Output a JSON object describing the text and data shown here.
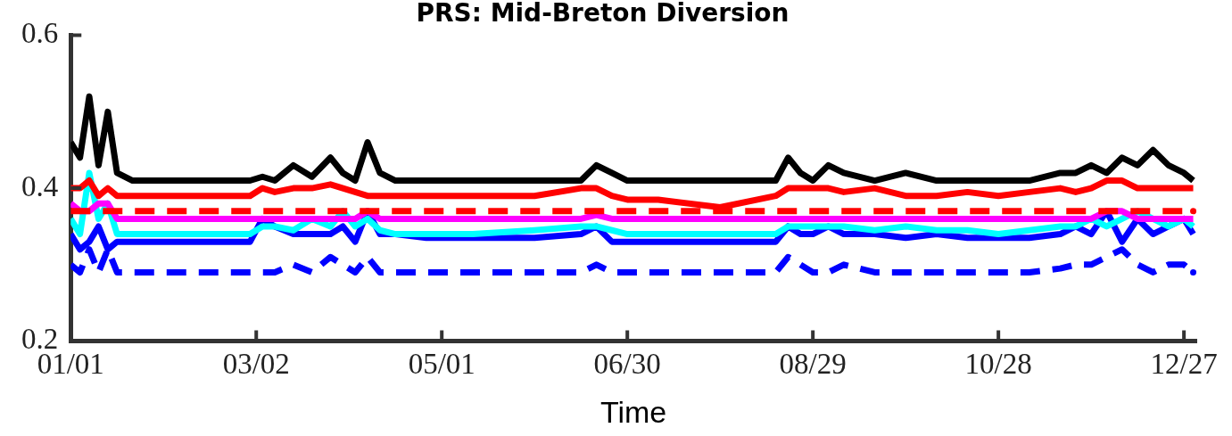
{
  "chart_data": {
    "type": "line",
    "title": "PRS: Mid-Breton Diversion",
    "xlabel": "Time",
    "x": [
      "--01-01",
      "--01-04",
      "--01-07",
      "--01-10",
      "--01-13",
      "--01-16",
      "--01-21",
      "--01-31",
      "--02-15",
      "--02-28",
      "--03-04",
      "--03-08",
      "--03-14",
      "--03-20",
      "--03-26",
      "--03-30",
      "--04-03",
      "--04-07",
      "--04-11",
      "--04-16",
      "--04-26",
      "--05-11",
      "--05-31",
      "--06-15",
      "--06-20",
      "--06-25",
      "--06-30",
      "--07-10",
      "--07-30",
      "--08-17",
      "--08-21",
      "--08-25",
      "--08-29",
      "--09-03",
      "--09-08",
      "--09-18",
      "--09-28",
      "--10-08",
      "--10-18",
      "--10-28",
      "--11-07",
      "--11-17",
      "--11-22",
      "--11-27",
      "--12-02",
      "--12-07",
      "--12-12",
      "--12-17",
      "--12-22",
      "--12-27",
      "--12-30"
    ],
    "series": [
      {
        "color": "#000000",
        "values": [
          0.46,
          0.44,
          0.52,
          0.43,
          0.5,
          0.42,
          0.41,
          0.41,
          0.41,
          0.41,
          0.415,
          0.41,
          0.43,
          0.415,
          0.44,
          0.42,
          0.41,
          0.46,
          0.42,
          0.41,
          0.41,
          0.41,
          0.41,
          0.41,
          0.43,
          0.42,
          0.41,
          0.41,
          0.41,
          0.41,
          0.44,
          0.42,
          0.41,
          0.43,
          0.42,
          0.41,
          0.42,
          0.41,
          0.41,
          0.41,
          0.41,
          0.42,
          0.42,
          0.43,
          0.42,
          0.44,
          0.43,
          0.45,
          0.43,
          0.42,
          0.41
        ]
      },
      {
        "color": "#ff0000",
        "values": [
          0.4,
          0.4,
          0.41,
          0.39,
          0.4,
          0.39,
          0.39,
          0.39,
          0.39,
          0.39,
          0.4,
          0.395,
          0.4,
          0.4,
          0.405,
          0.4,
          0.395,
          0.39,
          0.39,
          0.39,
          0.39,
          0.39,
          0.39,
          0.4,
          0.4,
          0.39,
          0.385,
          0.385,
          0.375,
          0.39,
          0.4,
          0.4,
          0.4,
          0.4,
          0.395,
          0.4,
          0.39,
          0.39,
          0.395,
          0.39,
          0.395,
          0.4,
          0.395,
          0.4,
          0.41,
          0.41,
          0.4,
          0.4,
          0.4,
          0.4,
          0.4
        ]
      },
      {
        "color": "#ff0000",
        "line_style": "dashed",
        "values": [
          0.37,
          0.37,
          0.37,
          0.37,
          0.37,
          0.37,
          0.37,
          0.37,
          0.37,
          0.37,
          0.37,
          0.37,
          0.37,
          0.37,
          0.37,
          0.37,
          0.37,
          0.37,
          0.37,
          0.37,
          0.37,
          0.37,
          0.37,
          0.37,
          0.37,
          0.37,
          0.37,
          0.37,
          0.37,
          0.37,
          0.37,
          0.37,
          0.37,
          0.37,
          0.37,
          0.37,
          0.37,
          0.37,
          0.37,
          0.37,
          0.37,
          0.37,
          0.37,
          0.37,
          0.37,
          0.37,
          0.37,
          0.37,
          0.37,
          0.37,
          0.37
        ]
      },
      {
        "color": "#ff00ff",
        "values": [
          0.38,
          0.37,
          0.37,
          0.38,
          0.38,
          0.36,
          0.36,
          0.36,
          0.36,
          0.36,
          0.36,
          0.36,
          0.36,
          0.36,
          0.36,
          0.36,
          0.36,
          0.37,
          0.36,
          0.36,
          0.36,
          0.36,
          0.36,
          0.36,
          0.365,
          0.36,
          0.36,
          0.36,
          0.36,
          0.36,
          0.36,
          0.36,
          0.36,
          0.36,
          0.36,
          0.36,
          0.36,
          0.36,
          0.36,
          0.36,
          0.36,
          0.36,
          0.36,
          0.36,
          0.37,
          0.37,
          0.36,
          0.36,
          0.36,
          0.36,
          0.36
        ]
      },
      {
        "color": "#00ffff",
        "values": [
          0.36,
          0.34,
          0.42,
          0.36,
          0.38,
          0.34,
          0.34,
          0.34,
          0.34,
          0.34,
          0.35,
          0.35,
          0.345,
          0.36,
          0.35,
          0.37,
          0.35,
          0.36,
          0.345,
          0.34,
          0.34,
          0.34,
          0.345,
          0.35,
          0.35,
          0.345,
          0.34,
          0.34,
          0.34,
          0.34,
          0.35,
          0.35,
          0.35,
          0.35,
          0.35,
          0.345,
          0.35,
          0.345,
          0.345,
          0.34,
          0.345,
          0.35,
          0.35,
          0.36,
          0.35,
          0.36,
          0.37,
          0.36,
          0.35,
          0.36,
          0.35
        ]
      },
      {
        "color": "#0000ff",
        "values": [
          0.34,
          0.32,
          0.33,
          0.35,
          0.32,
          0.33,
          0.33,
          0.33,
          0.33,
          0.33,
          0.36,
          0.35,
          0.34,
          0.34,
          0.34,
          0.35,
          0.33,
          0.37,
          0.34,
          0.34,
          0.335,
          0.335,
          0.335,
          0.34,
          0.35,
          0.33,
          0.33,
          0.33,
          0.33,
          0.33,
          0.35,
          0.34,
          0.34,
          0.35,
          0.34,
          0.34,
          0.335,
          0.34,
          0.335,
          0.335,
          0.335,
          0.34,
          0.35,
          0.34,
          0.37,
          0.33,
          0.36,
          0.34,
          0.35,
          0.36,
          0.34
        ]
      },
      {
        "color": "#0000ff",
        "line_style": "dashed",
        "values": [
          0.3,
          0.29,
          0.32,
          0.29,
          0.32,
          0.29,
          0.29,
          0.29,
          0.29,
          0.29,
          0.29,
          0.29,
          0.3,
          0.29,
          0.31,
          0.3,
          0.29,
          0.31,
          0.29,
          0.29,
          0.29,
          0.29,
          0.29,
          0.29,
          0.3,
          0.29,
          0.29,
          0.29,
          0.29,
          0.29,
          0.31,
          0.3,
          0.29,
          0.29,
          0.3,
          0.29,
          0.29,
          0.29,
          0.29,
          0.29,
          0.29,
          0.295,
          0.3,
          0.3,
          0.31,
          0.32,
          0.3,
          0.29,
          0.3,
          0.3,
          0.29
        ]
      }
    ],
    "xlim": [
      "--01-01",
      "--12-31"
    ],
    "xticks": [
      {
        "value": "--01-01",
        "label": "01/01"
      },
      {
        "value": "--03-02",
        "label": "03/02"
      },
      {
        "value": "--05-01",
        "label": "05/01"
      },
      {
        "value": "--06-30",
        "label": "06/30"
      },
      {
        "value": "--08-29",
        "label": "08/29"
      },
      {
        "value": "--10-28",
        "label": "10/28"
      },
      {
        "value": "--12-27",
        "label": "12/27"
      }
    ],
    "ylim": [
      0.2,
      0.6
    ],
    "yticks": [
      0.2,
      0.4,
      0.6
    ],
    "grid": false,
    "legend": false,
    "marker": "none"
  }
}
